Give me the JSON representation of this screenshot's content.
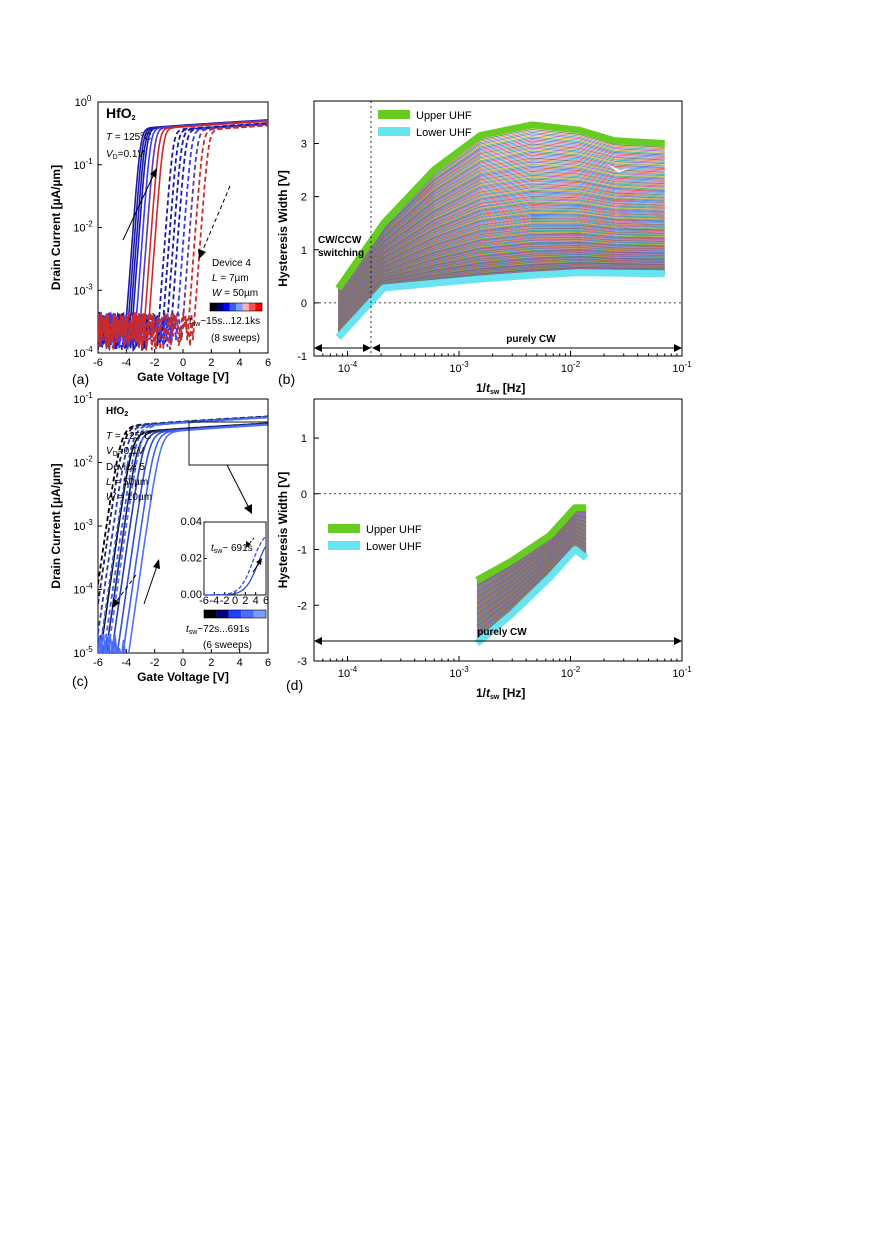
{
  "chart_data": [
    {
      "panel": "(a)",
      "type": "line",
      "xlabel": "Gate Voltage [V]",
      "ylabel": "Drain Current [µA/µm]",
      "xlim": [
        -6,
        6
      ],
      "ylim": [
        0.0001,
        1
      ],
      "yscale": "log",
      "xticks": [
        "-6",
        "-4",
        "-2",
        "0",
        "2",
        "4",
        "6"
      ],
      "yticks": [
        "10-4",
        "10-3",
        "10-2",
        "10-1",
        "100"
      ],
      "annotations": {
        "material": "HfO2",
        "temperature": "T = 125°C",
        "drain_bias": "VD=0.1V",
        "device": "Device 4",
        "length": "L = 7µm",
        "width": "W = 50µm",
        "sweep_time": "tsw~15s...12.1ks",
        "sweeps": "(8 sweeps)"
      },
      "colorbar": [
        "#000000",
        "#00007a",
        "#0000ff",
        "#3a5cff",
        "#7aa0ff",
        "#ffb0b0",
        "#ff5050",
        "#ff0000"
      ],
      "sweep_colors": [
        "#1a1aaa",
        "#1a1aaa",
        "#1a1aaa",
        "#1a1aaa",
        "#3a3aff",
        "#5b3aaa",
        "#cc2b2b",
        "#cc2b2b"
      ],
      "sweeps": [
        {
          "up_vth": -3.0,
          "down_vth": -0.7
        },
        {
          "up_vth": -2.85,
          "down_vth": -0.4
        },
        {
          "up_vth": -2.7,
          "down_vth": -0.1
        },
        {
          "up_vth": -2.55,
          "down_vth": 0.2
        },
        {
          "up_vth": -2.3,
          "down_vth": 0.6
        },
        {
          "up_vth": -2.0,
          "down_vth": 1.0
        },
        {
          "up_vth": -1.7,
          "down_vth": 1.4
        },
        {
          "up_vth": -1.4,
          "down_vth": 1.8
        }
      ]
    },
    {
      "panel": "(b)",
      "type": "area",
      "xlabel": "1/tsw [Hz]",
      "ylabel": "Hysteresis Width [V]",
      "xscale": "log",
      "xlim": [
        5e-05,
        0.1
      ],
      "ylim": [
        -1,
        3.8
      ],
      "xticks": [
        "10-4",
        "10-3",
        "10-2",
        "10-1"
      ],
      "yticks": [
        "-1",
        "0",
        "1",
        "2",
        "3"
      ],
      "legend": [
        "Upper UHF",
        "Lower UHF"
      ],
      "series_colors": {
        "upper": "#66cc22",
        "lower": "#66e4ef"
      },
      "upper": {
        "x": [
          8.26e-05,
          0.000211,
          0.000595,
          0.00155,
          0.0045,
          0.012,
          0.025,
          0.07
        ],
        "y": [
          0.27,
          1.5,
          2.5,
          3.15,
          3.35,
          3.25,
          3.05,
          3.0
        ]
      },
      "lower": {
        "x": [
          8.26e-05,
          0.000211,
          0.000595,
          0.00155,
          0.0045,
          0.012,
          0.025,
          0.07
        ],
        "y": [
          -0.65,
          0.28,
          0.37,
          0.45,
          0.52,
          0.57,
          0.56,
          0.55
        ]
      },
      "text": {
        "switch": "CW/CCW",
        "switch2": "switching",
        "regime": "purely CW"
      }
    },
    {
      "panel": "(c)",
      "type": "line",
      "xlabel": "Gate Voltage [V]",
      "ylabel": "Drain Current [µA/µm]",
      "xlim": [
        -6,
        6
      ],
      "ylim": [
        1e-05,
        0.1
      ],
      "yscale": "log",
      "xticks": [
        "-6",
        "-4",
        "-2",
        "0",
        "2",
        "4",
        "6"
      ],
      "yticks": [
        "10-5",
        "10-4",
        "10-3",
        "10-2",
        "10-1"
      ],
      "annotations": {
        "material": "HfO2",
        "temperature": "T = 125°C",
        "drain_bias": "VD=0.1V",
        "device": "Device 5",
        "length": "L = 50µm",
        "width": "W = 10µm",
        "sweep_time": "tsw~72s...691s",
        "sweeps": "(6 sweeps)",
        "inset_label": "tsw~ 691s"
      },
      "colorbar": [
        "#000000",
        "#00007a",
        "#2040ff",
        "#4b6cff",
        "#7a9cff"
      ],
      "sweep_colors": [
        "#000000",
        "#222266",
        "#2a3ab0",
        "#3050d8",
        "#4060ee",
        "#5070ff"
      ],
      "sweeps": [
        {
          "up_vth": -3.6,
          "down_vth": -4.4
        },
        {
          "up_vth": -3.2,
          "down_vth": -4.2
        },
        {
          "up_vth": -2.8,
          "down_vth": -3.9
        },
        {
          "up_vth": -2.4,
          "down_vth": -3.6
        },
        {
          "up_vth": -2.0,
          "down_vth": -3.3
        },
        {
          "up_vth": -1.6,
          "down_vth": -3.0
        }
      ],
      "inset": {
        "xlim": [
          -6,
          6
        ],
        "ylim": [
          0,
          0.04
        ],
        "xticks": [
          "-6",
          "-4",
          "-2",
          "0",
          "2",
          "4",
          "6"
        ],
        "yticks": [
          "0.00",
          "0.02",
          "0.04"
        ]
      }
    },
    {
      "panel": "(d)",
      "type": "area",
      "xlabel": "1/tsw [Hz]",
      "ylabel": "Hysteresis Width [V]",
      "xscale": "log",
      "xlim": [
        5e-05,
        0.1
      ],
      "ylim": [
        -3,
        1.7
      ],
      "xticks": [
        "10-4",
        "10-3",
        "10-2",
        "10-1"
      ],
      "yticks": [
        "-3",
        "-2",
        "-1",
        "0",
        "1"
      ],
      "legend": [
        "Upper UHF",
        "Lower UHF"
      ],
      "series_colors": {
        "upper": "#66cc22",
        "lower": "#66e4ef"
      },
      "upper": {
        "x": [
          0.00145,
          0.003,
          0.0065,
          0.011,
          0.0138
        ],
        "y": [
          -1.55,
          -1.2,
          -0.75,
          -0.25,
          -0.25
        ]
      },
      "lower": {
        "x": [
          0.00145,
          0.003,
          0.0065,
          0.011,
          0.0138
        ],
        "y": [
          -2.68,
          -2.15,
          -1.5,
          -1.0,
          -1.15
        ]
      },
      "text": {
        "regime": "purely CW"
      }
    }
  ]
}
